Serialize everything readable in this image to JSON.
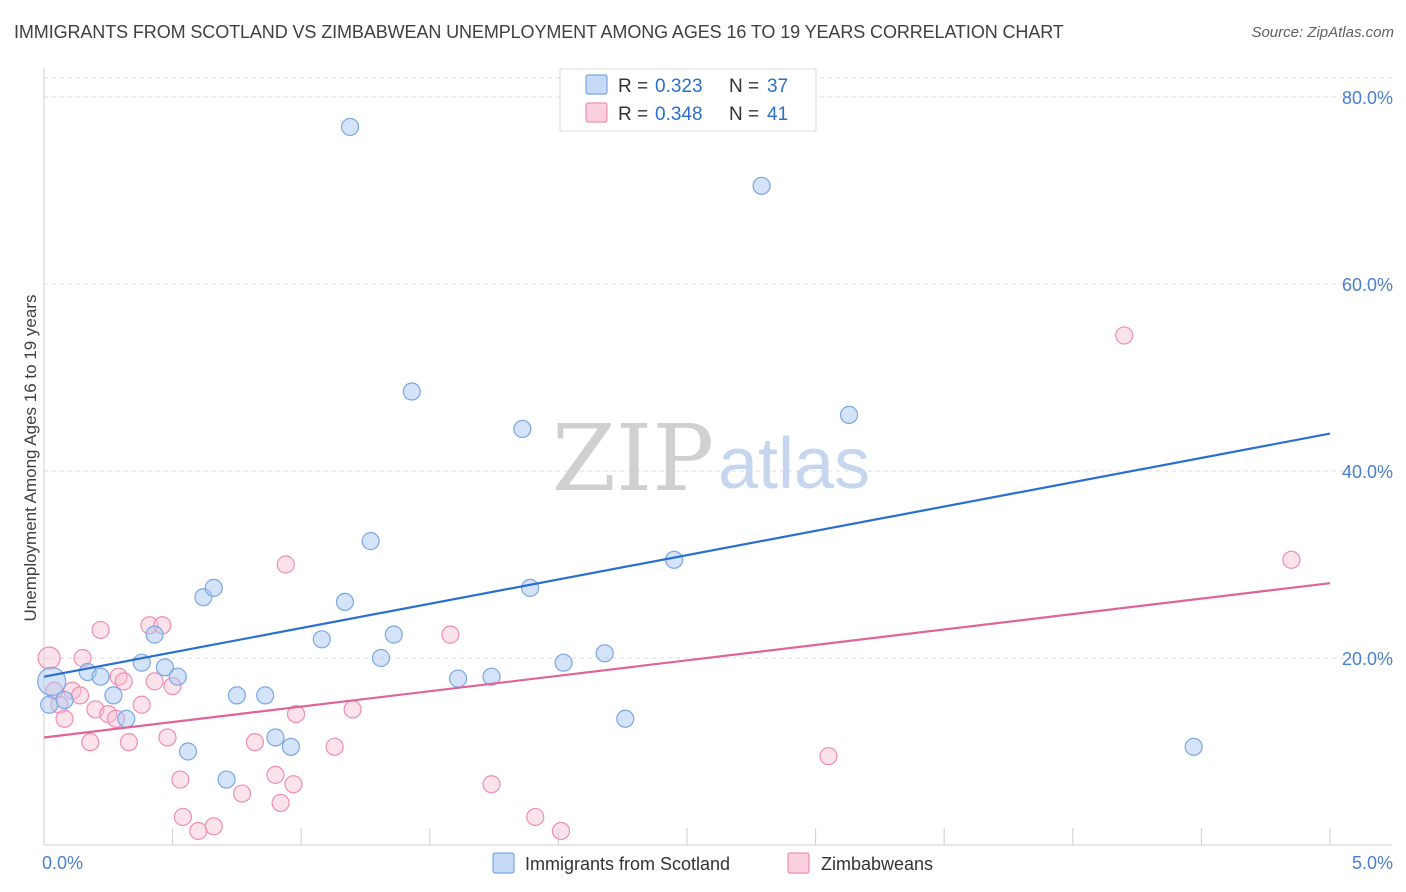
{
  "header": {
    "title": "IMMIGRANTS FROM SCOTLAND VS ZIMBABWEAN UNEMPLOYMENT AMONG AGES 16 TO 19 YEARS CORRELATION CHART",
    "source": "Source: ZipAtlas.com"
  },
  "watermark": {
    "zip": "ZIP",
    "atlas": "atlas"
  },
  "legend_top": {
    "rows": [
      {
        "r_label": "R =",
        "r_value": "0.323",
        "n_label": "N =",
        "n_value": "37"
      },
      {
        "r_label": "R =",
        "r_value": "0.348",
        "n_label": "N =",
        "n_value": "41"
      }
    ]
  },
  "chart_data": {
    "type": "scatter",
    "title": "IMMIGRANTS FROM SCOTLAND VS ZIMBABWEAN UNEMPLOYMENT AMONG AGES 16 TO 19 YEARS CORRELATION CHART",
    "xlabel": "",
    "ylabel": "Unemployment Among Ages 16 to 19 years",
    "xlim": [
      0,
      5
    ],
    "ylim": [
      0,
      80
    ],
    "x_tick_labels": [
      "0.0%",
      "5.0%"
    ],
    "y_ticks": [
      20,
      40,
      60,
      80
    ],
    "y_tick_labels": [
      "20.0%",
      "40.0%",
      "60.0%",
      "80.0%"
    ],
    "grid": true,
    "colors": {
      "scotland": "#7aa7e6",
      "zimbabwe": "#f08fb0",
      "scotland_line": "#2a6fd0",
      "zimbabwe_line": "#e0649a",
      "tick_text": "#4a7fd0"
    },
    "series": [
      {
        "name": "Immigrants from Scotland",
        "R": 0.323,
        "N": 37,
        "trend": {
          "x": [
            0,
            5
          ],
          "y": [
            18.0,
            44.0
          ]
        },
        "points": [
          [
            0.03,
            17.5
          ],
          [
            0.08,
            15.5
          ],
          [
            0.17,
            18.5
          ],
          [
            0.22,
            18.0
          ],
          [
            0.27,
            16.0
          ],
          [
            0.32,
            13.5
          ],
          [
            0.38,
            19.5
          ],
          [
            0.43,
            22.5
          ],
          [
            0.47,
            19.0
          ],
          [
            0.52,
            18.0
          ],
          [
            0.56,
            10.0
          ],
          [
            0.62,
            26.5
          ],
          [
            0.66,
            27.5
          ],
          [
            0.71,
            7.0
          ],
          [
            0.75,
            16.0
          ],
          [
            0.86,
            16.0
          ],
          [
            0.9,
            11.5
          ],
          [
            0.96,
            10.5
          ],
          [
            1.08,
            22.0
          ],
          [
            1.17,
            26.0
          ],
          [
            1.19,
            76.8
          ],
          [
            1.27,
            32.5
          ],
          [
            1.31,
            20.0
          ],
          [
            1.36,
            22.5
          ],
          [
            1.43,
            48.5
          ],
          [
            1.61,
            17.8
          ],
          [
            1.74,
            18.0
          ],
          [
            1.86,
            44.5
          ],
          [
            1.89,
            27.5
          ],
          [
            2.02,
            19.5
          ],
          [
            2.18,
            20.5
          ],
          [
            2.26,
            13.5
          ],
          [
            2.45,
            30.5
          ],
          [
            2.79,
            70.5
          ],
          [
            3.13,
            46.0
          ],
          [
            4.47,
            10.5
          ],
          [
            0.02,
            15.0
          ]
        ]
      },
      {
        "name": "Zimbabweans",
        "R": 0.348,
        "N": 41,
        "trend": {
          "x": [
            0,
            5
          ],
          "y": [
            11.5,
            28.0
          ]
        },
        "points": [
          [
            0.02,
            20.0
          ],
          [
            0.04,
            16.5
          ],
          [
            0.06,
            15.0
          ],
          [
            0.08,
            13.5
          ],
          [
            0.11,
            16.5
          ],
          [
            0.14,
            16.0
          ],
          [
            0.15,
            20.0
          ],
          [
            0.18,
            11.0
          ],
          [
            0.2,
            14.5
          ],
          [
            0.22,
            23.0
          ],
          [
            0.25,
            14.0
          ],
          [
            0.28,
            13.5
          ],
          [
            0.29,
            18.0
          ],
          [
            0.31,
            17.5
          ],
          [
            0.33,
            11.0
          ],
          [
            0.38,
            15.0
          ],
          [
            0.41,
            23.5
          ],
          [
            0.43,
            17.5
          ],
          [
            0.46,
            23.5
          ],
          [
            0.48,
            11.5
          ],
          [
            0.5,
            17.0
          ],
          [
            0.53,
            7.0
          ],
          [
            0.54,
            3.0
          ],
          [
            0.6,
            1.5
          ],
          [
            0.66,
            2.0
          ],
          [
            0.77,
            5.5
          ],
          [
            0.82,
            11.0
          ],
          [
            0.9,
            7.5
          ],
          [
            0.92,
            4.5
          ],
          [
            0.94,
            30.0
          ],
          [
            0.97,
            6.5
          ],
          [
            0.98,
            14.0
          ],
          [
            1.13,
            10.5
          ],
          [
            1.2,
            14.5
          ],
          [
            1.58,
            22.5
          ],
          [
            1.74,
            6.5
          ],
          [
            1.91,
            3.0
          ],
          [
            2.01,
            1.5
          ],
          [
            3.05,
            9.5
          ],
          [
            4.2,
            54.5
          ],
          [
            4.85,
            30.5
          ]
        ]
      }
    ]
  }
}
